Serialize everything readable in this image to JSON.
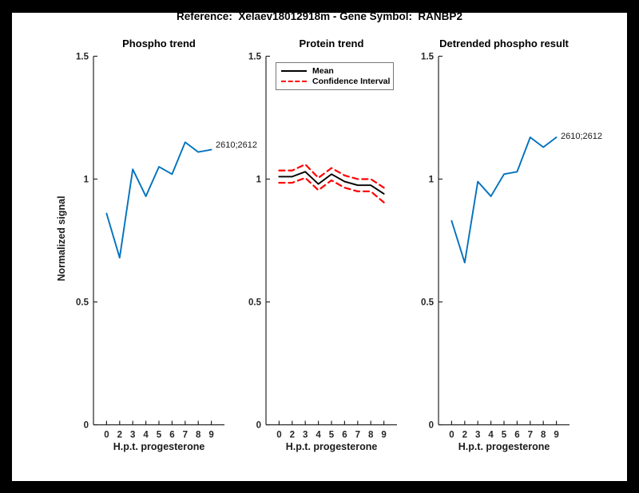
{
  "figure": {
    "title": "Reference:  Xelaev18012918m - Gene Symbol:  RANBP2"
  },
  "colors": {
    "line_blue": "#0072BD",
    "mean_black": "#000000",
    "ci_red": "#FF0000",
    "axis": "#262626",
    "background": "#FFFFFF",
    "frame": "#000000"
  },
  "axes": {
    "x_tick_labels": [
      "0",
      "2",
      "3",
      "4",
      "5",
      "6",
      "7",
      "8",
      "9"
    ],
    "y_tick_labels": [
      "0",
      "0.5",
      "1",
      "1.5"
    ],
    "y_tick_values": [
      0,
      0.5,
      1,
      1.5
    ],
    "ylim": [
      0,
      1.5
    ],
    "x_label": "H.p.t. progesterone",
    "y_label": "Normalized signal"
  },
  "chart_data": [
    {
      "type": "line",
      "title": "Phospho trend",
      "x": [
        0,
        2,
        3,
        4,
        5,
        6,
        7,
        8,
        9
      ],
      "xlabel": "H.p.t. progesterone",
      "ylabel": "Normalized signal",
      "ylim": [
        0,
        1.5
      ],
      "yticks": [
        0,
        0.5,
        1,
        1.5
      ],
      "grid": false,
      "end_label": "2610;2612",
      "series": [
        {
          "name": "2610;2612",
          "color": "#0072BD",
          "style": "solid",
          "values": [
            0.86,
            0.68,
            1.04,
            0.93,
            1.05,
            1.02,
            1.15,
            1.11,
            1.12
          ]
        }
      ]
    },
    {
      "type": "line",
      "title": "Protein trend",
      "x": [
        0,
        2,
        3,
        4,
        5,
        6,
        7,
        8,
        9
      ],
      "xlabel": "H.p.t. progesterone",
      "ylabel": "",
      "ylim": [
        0,
        1.5
      ],
      "yticks": [
        0,
        0.5,
        1,
        1.5
      ],
      "grid": false,
      "legend": {
        "position": "top-left",
        "entries": [
          {
            "label": "Mean",
            "line": "solid-black"
          },
          {
            "label": "Confidence Interval",
            "line": "dashed-red"
          }
        ]
      },
      "series": [
        {
          "name": "Mean",
          "color": "#000000",
          "style": "solid",
          "values": [
            1.01,
            1.01,
            1.03,
            0.98,
            1.02,
            0.99,
            0.975,
            0.975,
            0.94
          ]
        },
        {
          "name": "Confidence Interval upper",
          "color": "#FF0000",
          "style": "dashed",
          "values": [
            1.035,
            1.035,
            1.06,
            1.005,
            1.045,
            1.015,
            1.0,
            1.0,
            0.965
          ]
        },
        {
          "name": "Confidence Interval lower",
          "color": "#FF0000",
          "style": "dashed",
          "values": [
            0.985,
            0.985,
            1.005,
            0.955,
            0.995,
            0.965,
            0.95,
            0.95,
            0.905
          ]
        }
      ]
    },
    {
      "type": "line",
      "title": "Detrended phospho result",
      "x": [
        0,
        2,
        3,
        4,
        5,
        6,
        7,
        8,
        9
      ],
      "xlabel": "H.p.t. progesterone",
      "ylabel": "",
      "ylim": [
        0,
        1.5
      ],
      "yticks": [
        0,
        0.5,
        1,
        1.5
      ],
      "grid": false,
      "end_label": "2610;2612",
      "series": [
        {
          "name": "2610;2612",
          "color": "#0072BD",
          "style": "solid",
          "values": [
            0.83,
            0.66,
            0.99,
            0.93,
            1.02,
            1.03,
            1.17,
            1.13,
            1.17
          ]
        }
      ]
    }
  ]
}
